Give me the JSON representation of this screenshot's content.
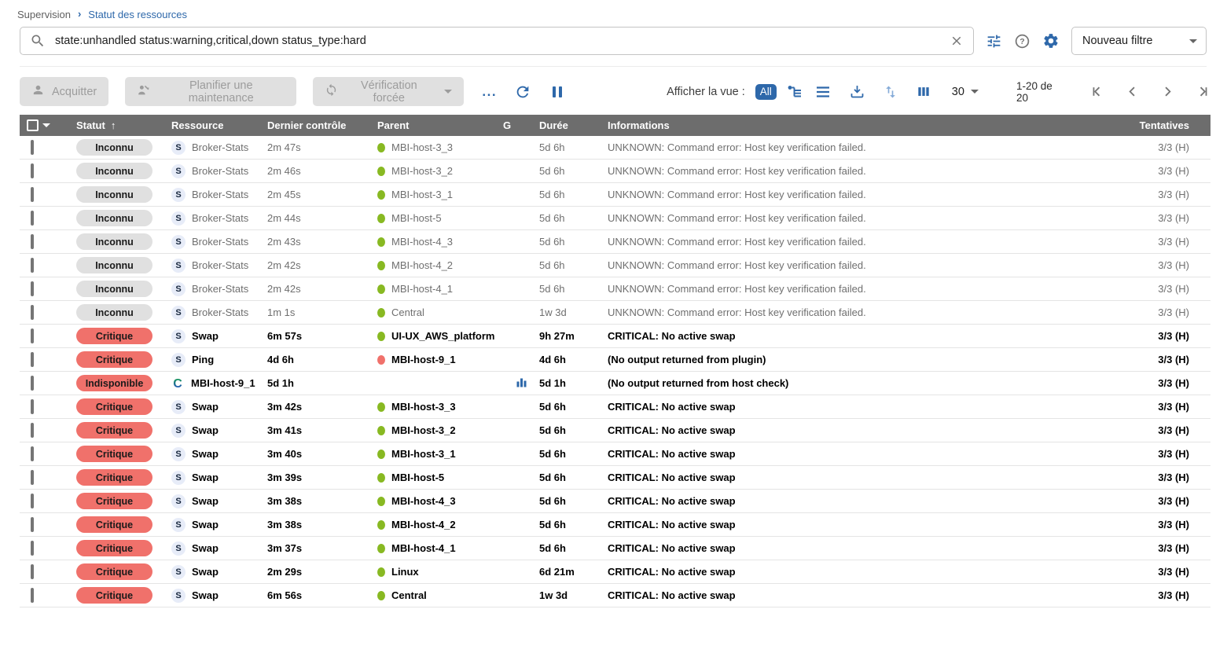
{
  "breadcrumb": {
    "root": "Supervision",
    "current": "Statut des ressources"
  },
  "search": {
    "value": "state:unhandled status:warning,critical,down status_type:hard",
    "filter_selector": "Nouveau filtre"
  },
  "actions": {
    "acknowledge": "Acquitter",
    "downtime": "Planifier une maintenance",
    "forced_check": "Vérification forcée",
    "more": "...",
    "view_label": "Afficher la vue :",
    "view_all": "All"
  },
  "pagination": {
    "per_page": "30",
    "range": "1-20 de 20"
  },
  "table": {
    "headers": {
      "status": "Statut",
      "resource": "Ressource",
      "last_check": "Dernier contrôle",
      "parent": "Parent",
      "graph": "G",
      "duration": "Durée",
      "information": "Informations",
      "tries": "Tentatives"
    },
    "sort_icon": "↑",
    "rows": [
      {
        "status": "Inconnu",
        "severity": "unknown",
        "type": "service",
        "resource": "Broker-Stats",
        "last_check": "2m 47s",
        "parent": "MBI-host-3_3",
        "parent_status": "up",
        "graph": false,
        "duration": "5d 6h",
        "info": "UNKNOWN: Command error: Host key verification failed.",
        "tries": "3/3 (H)"
      },
      {
        "status": "Inconnu",
        "severity": "unknown",
        "type": "service",
        "resource": "Broker-Stats",
        "last_check": "2m 46s",
        "parent": "MBI-host-3_2",
        "parent_status": "up",
        "graph": false,
        "duration": "5d 6h",
        "info": "UNKNOWN: Command error: Host key verification failed.",
        "tries": "3/3 (H)"
      },
      {
        "status": "Inconnu",
        "severity": "unknown",
        "type": "service",
        "resource": "Broker-Stats",
        "last_check": "2m 45s",
        "parent": "MBI-host-3_1",
        "parent_status": "up",
        "graph": false,
        "duration": "5d 6h",
        "info": "UNKNOWN: Command error: Host key verification failed.",
        "tries": "3/3 (H)"
      },
      {
        "status": "Inconnu",
        "severity": "unknown",
        "type": "service",
        "resource": "Broker-Stats",
        "last_check": "2m 44s",
        "parent": "MBI-host-5",
        "parent_status": "up",
        "graph": false,
        "duration": "5d 6h",
        "info": "UNKNOWN: Command error: Host key verification failed.",
        "tries": "3/3 (H)"
      },
      {
        "status": "Inconnu",
        "severity": "unknown",
        "type": "service",
        "resource": "Broker-Stats",
        "last_check": "2m 43s",
        "parent": "MBI-host-4_3",
        "parent_status": "up",
        "graph": false,
        "duration": "5d 6h",
        "info": "UNKNOWN: Command error: Host key verification failed.",
        "tries": "3/3 (H)"
      },
      {
        "status": "Inconnu",
        "severity": "unknown",
        "type": "service",
        "resource": "Broker-Stats",
        "last_check": "2m 42s",
        "parent": "MBI-host-4_2",
        "parent_status": "up",
        "graph": false,
        "duration": "5d 6h",
        "info": "UNKNOWN: Command error: Host key verification failed.",
        "tries": "3/3 (H)"
      },
      {
        "status": "Inconnu",
        "severity": "unknown",
        "type": "service",
        "resource": "Broker-Stats",
        "last_check": "2m 42s",
        "parent": "MBI-host-4_1",
        "parent_status": "up",
        "graph": false,
        "duration": "5d 6h",
        "info": "UNKNOWN: Command error: Host key verification failed.",
        "tries": "3/3 (H)"
      },
      {
        "status": "Inconnu",
        "severity": "unknown",
        "type": "service",
        "resource": "Broker-Stats",
        "last_check": "1m 1s",
        "parent": "Central",
        "parent_status": "up",
        "graph": false,
        "duration": "1w 3d",
        "info": "UNKNOWN: Command error: Host key verification failed.",
        "tries": "3/3 (H)"
      },
      {
        "status": "Critique",
        "severity": "critical",
        "type": "service",
        "resource": "Swap",
        "last_check": "6m 57s",
        "parent": "UI-UX_AWS_platform",
        "parent_status": "up",
        "graph": false,
        "duration": "9h 27m",
        "info": "CRITICAL: No active swap",
        "tries": "3/3 (H)"
      },
      {
        "status": "Critique",
        "severity": "critical",
        "type": "service",
        "resource": "Ping",
        "last_check": "4d 6h",
        "parent": "MBI-host-9_1",
        "parent_status": "down",
        "graph": false,
        "duration": "4d 6h",
        "info": "(No output returned from plugin)",
        "tries": "3/3 (H)"
      },
      {
        "status": "Indisponible",
        "severity": "down",
        "type": "host",
        "resource": "MBI-host-9_1",
        "last_check": "5d 1h",
        "parent": "",
        "parent_status": null,
        "graph": true,
        "duration": "5d 1h",
        "info": "(No output returned from host check)",
        "tries": "3/3 (H)"
      },
      {
        "status": "Critique",
        "severity": "critical",
        "type": "service",
        "resource": "Swap",
        "last_check": "3m 42s",
        "parent": "MBI-host-3_3",
        "parent_status": "up",
        "graph": false,
        "duration": "5d 6h",
        "info": "CRITICAL: No active swap",
        "tries": "3/3 (H)"
      },
      {
        "status": "Critique",
        "severity": "critical",
        "type": "service",
        "resource": "Swap",
        "last_check": "3m 41s",
        "parent": "MBI-host-3_2",
        "parent_status": "up",
        "graph": false,
        "duration": "5d 6h",
        "info": "CRITICAL: No active swap",
        "tries": "3/3 (H)"
      },
      {
        "status": "Critique",
        "severity": "critical",
        "type": "service",
        "resource": "Swap",
        "last_check": "3m 40s",
        "parent": "MBI-host-3_1",
        "parent_status": "up",
        "graph": false,
        "duration": "5d 6h",
        "info": "CRITICAL: No active swap",
        "tries": "3/3 (H)"
      },
      {
        "status": "Critique",
        "severity": "critical",
        "type": "service",
        "resource": "Swap",
        "last_check": "3m 39s",
        "parent": "MBI-host-5",
        "parent_status": "up",
        "graph": false,
        "duration": "5d 6h",
        "info": "CRITICAL: No active swap",
        "tries": "3/3 (H)"
      },
      {
        "status": "Critique",
        "severity": "critical",
        "type": "service",
        "resource": "Swap",
        "last_check": "3m 38s",
        "parent": "MBI-host-4_3",
        "parent_status": "up",
        "graph": false,
        "duration": "5d 6h",
        "info": "CRITICAL: No active swap",
        "tries": "3/3 (H)"
      },
      {
        "status": "Critique",
        "severity": "critical",
        "type": "service",
        "resource": "Swap",
        "last_check": "3m 38s",
        "parent": "MBI-host-4_2",
        "parent_status": "up",
        "graph": false,
        "duration": "5d 6h",
        "info": "CRITICAL: No active swap",
        "tries": "3/3 (H)"
      },
      {
        "status": "Critique",
        "severity": "critical",
        "type": "service",
        "resource": "Swap",
        "last_check": "3m 37s",
        "parent": "MBI-host-4_1",
        "parent_status": "up",
        "graph": false,
        "duration": "5d 6h",
        "info": "CRITICAL: No active swap",
        "tries": "3/3 (H)"
      },
      {
        "status": "Critique",
        "severity": "critical",
        "type": "service",
        "resource": "Swap",
        "last_check": "2m 29s",
        "parent": "Linux",
        "parent_status": "up",
        "graph": false,
        "duration": "6d 21m",
        "info": "CRITICAL: No active swap",
        "tries": "3/3 (H)"
      },
      {
        "status": "Critique",
        "severity": "critical",
        "type": "service",
        "resource": "Swap",
        "last_check": "6m 56s",
        "parent": "Central",
        "parent_status": "up",
        "graph": false,
        "duration": "1w 3d",
        "info": "CRITICAL: No active swap",
        "tries": "3/3 (H)"
      }
    ]
  },
  "colors": {
    "accent_blue": "#2e68aa",
    "critical_red": "#f0716b",
    "ok_green": "#88b922",
    "unknown_gray": "#e0e0e0",
    "header_gray": "#6d6d6d"
  }
}
